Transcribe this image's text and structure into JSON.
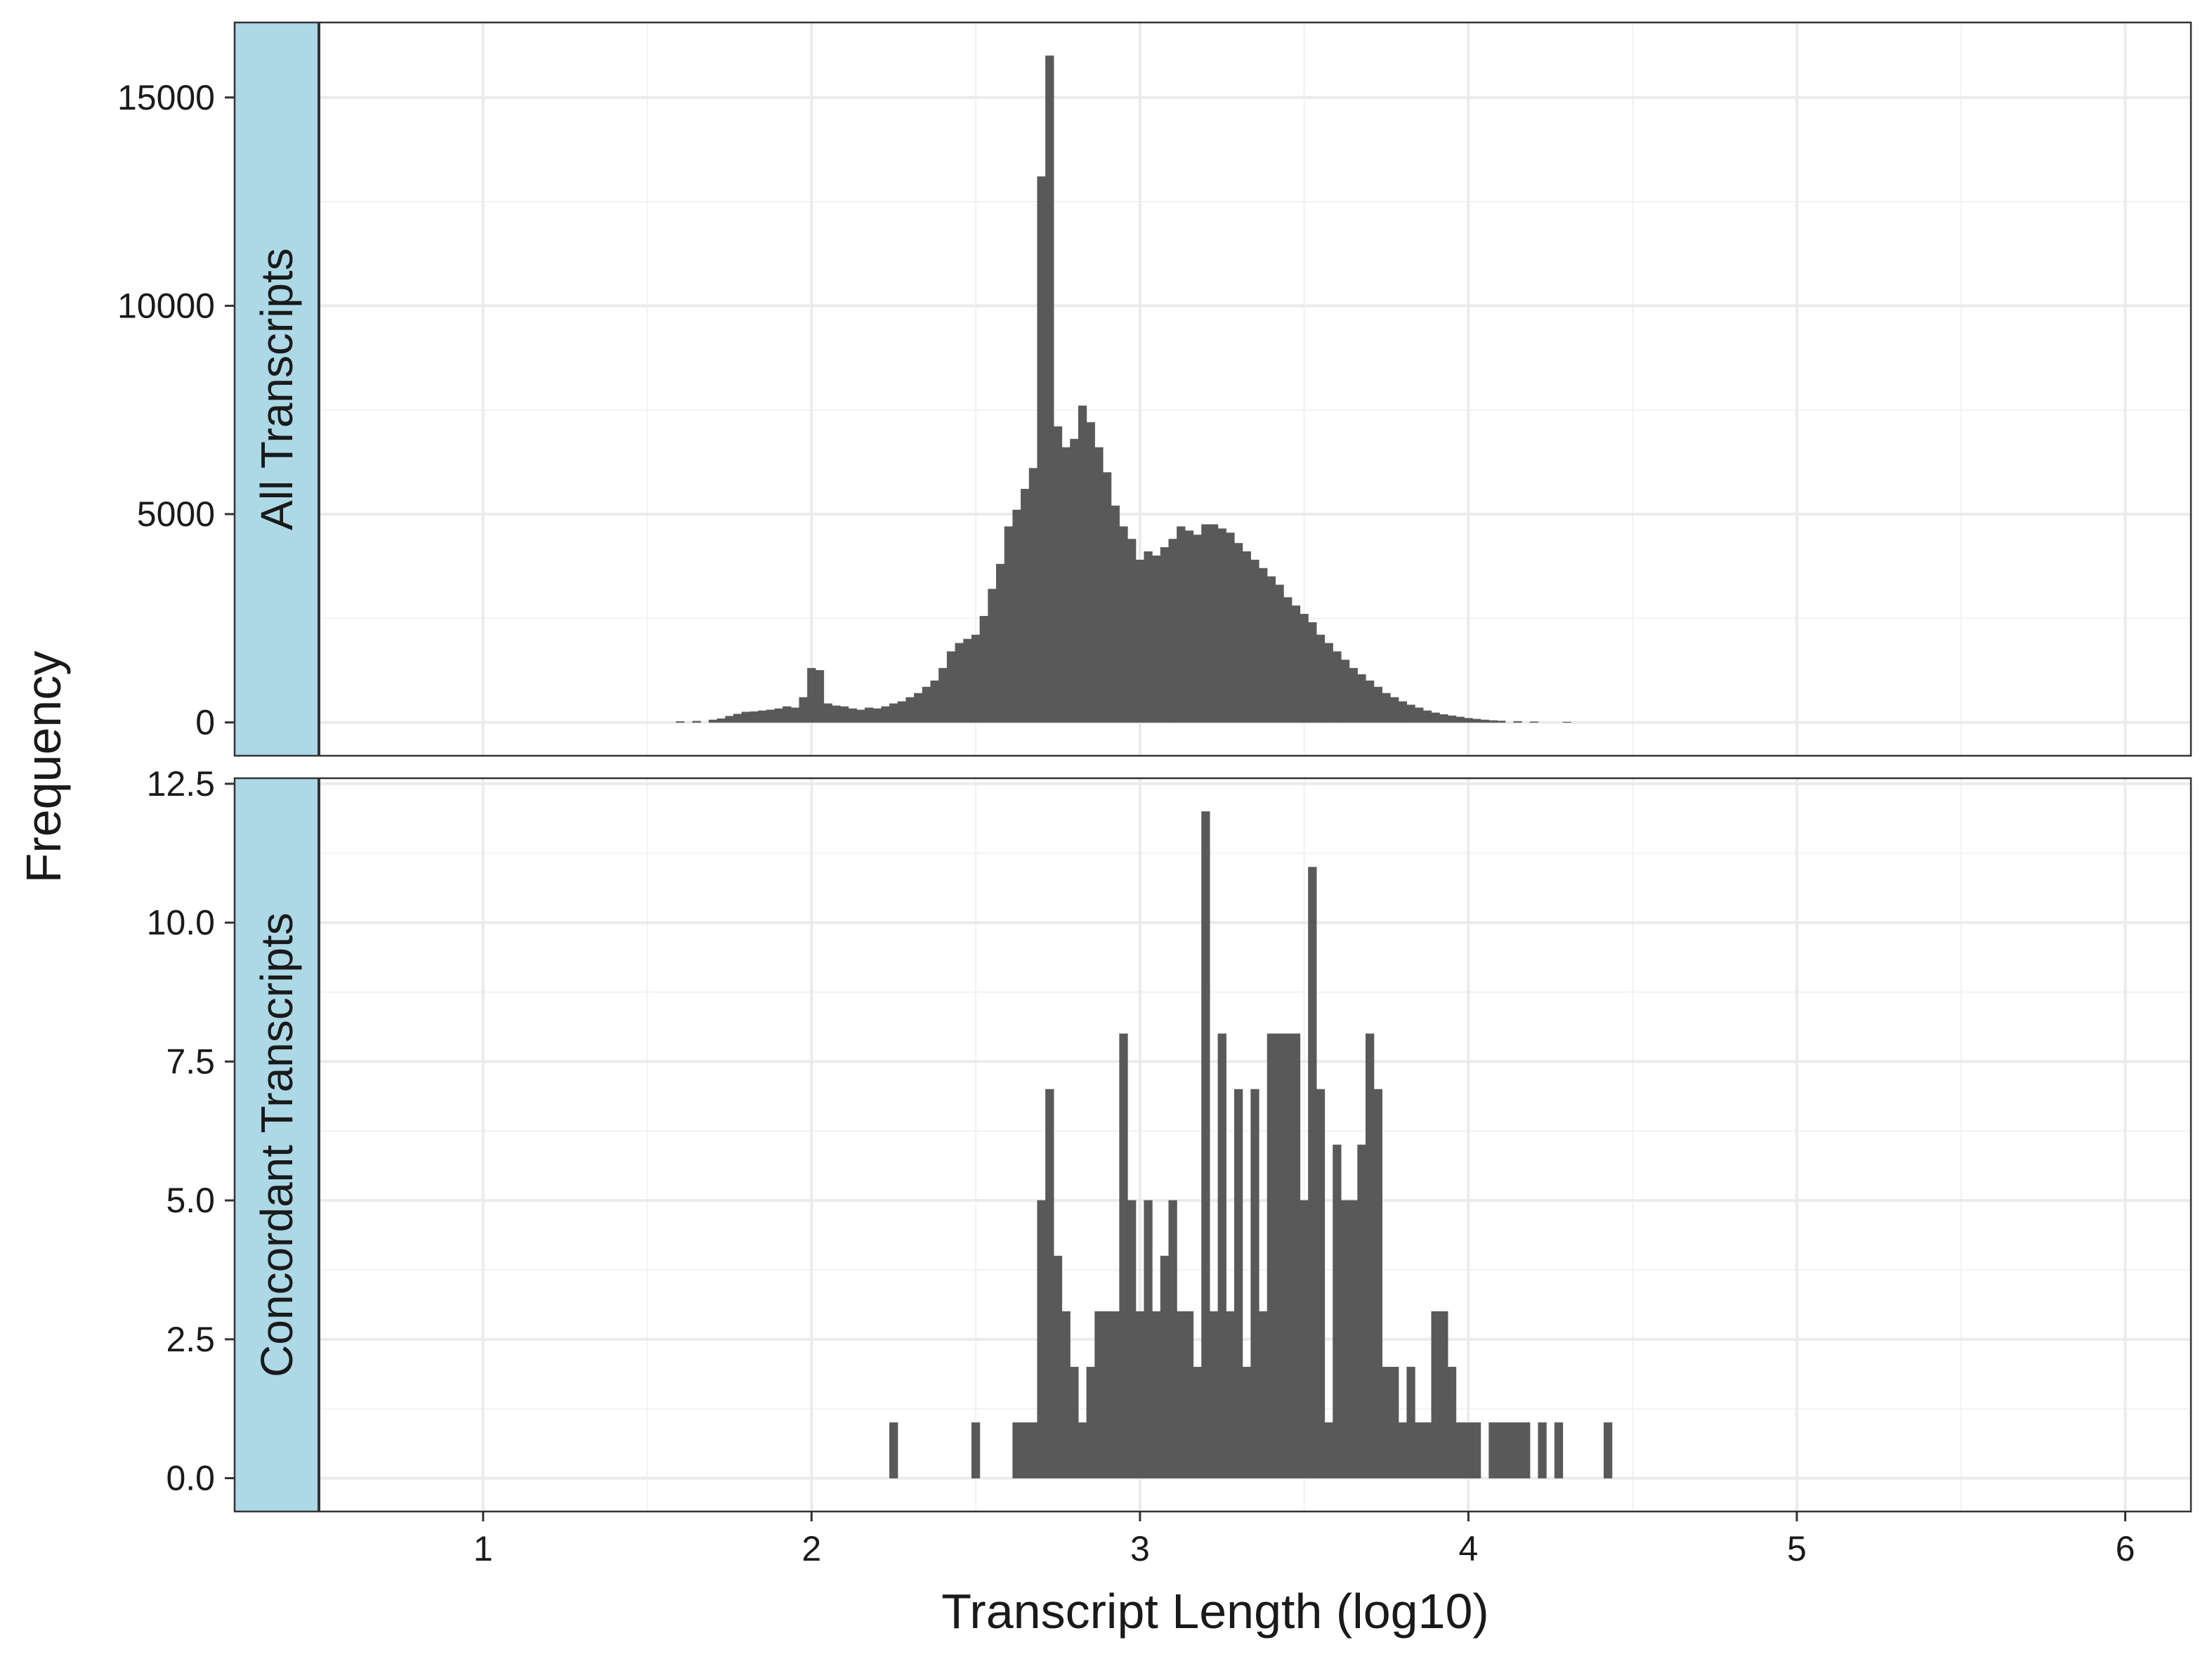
{
  "chart_data": {
    "type": "bar",
    "xlabel": "Transcript Length (log10)",
    "ylabel": "Frequency",
    "x_ticks": [
      1,
      2,
      3,
      4,
      5,
      6
    ],
    "x_tick_labels": [
      "1",
      "2",
      "3",
      "4",
      "5",
      "6"
    ],
    "xlim": [
      0.5,
      6.2
    ],
    "bin_width": 0.025,
    "grid": true,
    "strip_color": "#add8e6",
    "bar_color": "#595959",
    "panels": [
      {
        "label": "All Transcripts",
        "ylim": [
          -800,
          16800
        ],
        "y_ticks": [
          0,
          5000,
          10000,
          15000
        ],
        "y_tick_labels": [
          "0",
          "5000",
          "10000",
          "15000"
        ],
        "bars": [
          {
            "x": 1.6,
            "y": 20
          },
          {
            "x": 1.65,
            "y": 30
          },
          {
            "x": 1.7,
            "y": 60
          },
          {
            "x": 1.725,
            "y": 90
          },
          {
            "x": 1.75,
            "y": 150
          },
          {
            "x": 1.775,
            "y": 200
          },
          {
            "x": 1.8,
            "y": 250
          },
          {
            "x": 1.825,
            "y": 260
          },
          {
            "x": 1.85,
            "y": 280
          },
          {
            "x": 1.875,
            "y": 300
          },
          {
            "x": 1.9,
            "y": 330
          },
          {
            "x": 1.925,
            "y": 380
          },
          {
            "x": 1.95,
            "y": 350
          },
          {
            "x": 1.975,
            "y": 600
          },
          {
            "x": 2.0,
            "y": 1300
          },
          {
            "x": 2.025,
            "y": 1250
          },
          {
            "x": 2.05,
            "y": 450
          },
          {
            "x": 2.075,
            "y": 400
          },
          {
            "x": 2.1,
            "y": 380
          },
          {
            "x": 2.125,
            "y": 330
          },
          {
            "x": 2.15,
            "y": 300
          },
          {
            "x": 2.175,
            "y": 350
          },
          {
            "x": 2.2,
            "y": 330
          },
          {
            "x": 2.225,
            "y": 380
          },
          {
            "x": 2.25,
            "y": 450
          },
          {
            "x": 2.275,
            "y": 500
          },
          {
            "x": 2.3,
            "y": 600
          },
          {
            "x": 2.325,
            "y": 700
          },
          {
            "x": 2.35,
            "y": 850
          },
          {
            "x": 2.375,
            "y": 1000
          },
          {
            "x": 2.4,
            "y": 1300
          },
          {
            "x": 2.425,
            "y": 1700
          },
          {
            "x": 2.45,
            "y": 1900
          },
          {
            "x": 2.475,
            "y": 2000
          },
          {
            "x": 2.5,
            "y": 2100
          },
          {
            "x": 2.525,
            "y": 2550
          },
          {
            "x": 2.55,
            "y": 3200
          },
          {
            "x": 2.575,
            "y": 3800
          },
          {
            "x": 2.6,
            "y": 4700
          },
          {
            "x": 2.625,
            "y": 5100
          },
          {
            "x": 2.65,
            "y": 5600
          },
          {
            "x": 2.675,
            "y": 6100
          },
          {
            "x": 2.7,
            "y": 13100
          },
          {
            "x": 2.725,
            "y": 16000
          },
          {
            "x": 2.75,
            "y": 7100
          },
          {
            "x": 2.775,
            "y": 6600
          },
          {
            "x": 2.8,
            "y": 6800
          },
          {
            "x": 2.825,
            "y": 7600
          },
          {
            "x": 2.85,
            "y": 7200
          },
          {
            "x": 2.875,
            "y": 6600
          },
          {
            "x": 2.9,
            "y": 6000
          },
          {
            "x": 2.925,
            "y": 5200
          },
          {
            "x": 2.95,
            "y": 4700
          },
          {
            "x": 2.975,
            "y": 4400
          },
          {
            "x": 3.0,
            "y": 3900
          },
          {
            "x": 3.025,
            "y": 4100
          },
          {
            "x": 3.05,
            "y": 4000
          },
          {
            "x": 3.075,
            "y": 4200
          },
          {
            "x": 3.1,
            "y": 4400
          },
          {
            "x": 3.125,
            "y": 4700
          },
          {
            "x": 3.15,
            "y": 4600
          },
          {
            "x": 3.175,
            "y": 4500
          },
          {
            "x": 3.2,
            "y": 4750
          },
          {
            "x": 3.225,
            "y": 4750
          },
          {
            "x": 3.25,
            "y": 4650
          },
          {
            "x": 3.275,
            "y": 4550
          },
          {
            "x": 3.3,
            "y": 4300
          },
          {
            "x": 3.325,
            "y": 4100
          },
          {
            "x": 3.35,
            "y": 3900
          },
          {
            "x": 3.375,
            "y": 3700
          },
          {
            "x": 3.4,
            "y": 3500
          },
          {
            "x": 3.425,
            "y": 3300
          },
          {
            "x": 3.45,
            "y": 3000
          },
          {
            "x": 3.475,
            "y": 2800
          },
          {
            "x": 3.5,
            "y": 2600
          },
          {
            "x": 3.525,
            "y": 2400
          },
          {
            "x": 3.55,
            "y": 2100
          },
          {
            "x": 3.575,
            "y": 1900
          },
          {
            "x": 3.6,
            "y": 1700
          },
          {
            "x": 3.625,
            "y": 1500
          },
          {
            "x": 3.65,
            "y": 1300
          },
          {
            "x": 3.675,
            "y": 1150
          },
          {
            "x": 3.7,
            "y": 1000
          },
          {
            "x": 3.725,
            "y": 850
          },
          {
            "x": 3.75,
            "y": 700
          },
          {
            "x": 3.775,
            "y": 600
          },
          {
            "x": 3.8,
            "y": 500
          },
          {
            "x": 3.825,
            "y": 420
          },
          {
            "x": 3.85,
            "y": 350
          },
          {
            "x": 3.875,
            "y": 280
          },
          {
            "x": 3.9,
            "y": 230
          },
          {
            "x": 3.925,
            "y": 190
          },
          {
            "x": 3.95,
            "y": 160
          },
          {
            "x": 3.975,
            "y": 130
          },
          {
            "x": 4.0,
            "y": 100
          },
          {
            "x": 4.025,
            "y": 80
          },
          {
            "x": 4.05,
            "y": 60
          },
          {
            "x": 4.075,
            "y": 45
          },
          {
            "x": 4.1,
            "y": 35
          },
          {
            "x": 4.15,
            "y": 25
          },
          {
            "x": 4.2,
            "y": 15
          },
          {
            "x": 4.3,
            "y": 8
          }
        ]
      },
      {
        "label": "Concordant Transcripts",
        "ylim": [
          -0.6,
          12.6
        ],
        "y_ticks": [
          0,
          2.5,
          5,
          7.5,
          10,
          12.5
        ],
        "y_tick_labels": [
          "0.0",
          "2.5",
          "5.0",
          "7.5",
          "10.0",
          "12.5"
        ],
        "bars": [
          {
            "x": 2.25,
            "y": 1
          },
          {
            "x": 2.5,
            "y": 1
          },
          {
            "x": 2.625,
            "y": 1
          },
          {
            "x": 2.65,
            "y": 1
          },
          {
            "x": 2.675,
            "y": 1
          },
          {
            "x": 2.7,
            "y": 5
          },
          {
            "x": 2.725,
            "y": 7
          },
          {
            "x": 2.75,
            "y": 4
          },
          {
            "x": 2.775,
            "y": 3
          },
          {
            "x": 2.8,
            "y": 2
          },
          {
            "x": 2.825,
            "y": 1
          },
          {
            "x": 2.85,
            "y": 2
          },
          {
            "x": 2.875,
            "y": 3
          },
          {
            "x": 2.9,
            "y": 3
          },
          {
            "x": 2.925,
            "y": 3
          },
          {
            "x": 2.95,
            "y": 8
          },
          {
            "x": 2.975,
            "y": 5
          },
          {
            "x": 3.0,
            "y": 3
          },
          {
            "x": 3.025,
            "y": 5
          },
          {
            "x": 3.05,
            "y": 3
          },
          {
            "x": 3.075,
            "y": 4
          },
          {
            "x": 3.1,
            "y": 5
          },
          {
            "x": 3.125,
            "y": 3
          },
          {
            "x": 3.15,
            "y": 3
          },
          {
            "x": 3.175,
            "y": 2
          },
          {
            "x": 3.2,
            "y": 12
          },
          {
            "x": 3.225,
            "y": 3
          },
          {
            "x": 3.25,
            "y": 8
          },
          {
            "x": 3.275,
            "y": 3
          },
          {
            "x": 3.3,
            "y": 7
          },
          {
            "x": 3.325,
            "y": 2
          },
          {
            "x": 3.35,
            "y": 7
          },
          {
            "x": 3.375,
            "y": 3
          },
          {
            "x": 3.4,
            "y": 8
          },
          {
            "x": 3.425,
            "y": 8
          },
          {
            "x": 3.45,
            "y": 8
          },
          {
            "x": 3.475,
            "y": 8
          },
          {
            "x": 3.5,
            "y": 5
          },
          {
            "x": 3.525,
            "y": 11
          },
          {
            "x": 3.55,
            "y": 7
          },
          {
            "x": 3.575,
            "y": 1
          },
          {
            "x": 3.6,
            "y": 6
          },
          {
            "x": 3.625,
            "y": 5
          },
          {
            "x": 3.65,
            "y": 5
          },
          {
            "x": 3.675,
            "y": 6
          },
          {
            "x": 3.7,
            "y": 8
          },
          {
            "x": 3.725,
            "y": 7
          },
          {
            "x": 3.75,
            "y": 2
          },
          {
            "x": 3.775,
            "y": 2
          },
          {
            "x": 3.8,
            "y": 1
          },
          {
            "x": 3.825,
            "y": 2
          },
          {
            "x": 3.85,
            "y": 1
          },
          {
            "x": 3.875,
            "y": 1
          },
          {
            "x": 3.9,
            "y": 3
          },
          {
            "x": 3.925,
            "y": 3
          },
          {
            "x": 3.95,
            "y": 2
          },
          {
            "x": 3.975,
            "y": 1
          },
          {
            "x": 4.0,
            "y": 1
          },
          {
            "x": 4.025,
            "y": 1
          },
          {
            "x": 4.075,
            "y": 1
          },
          {
            "x": 4.1,
            "y": 1
          },
          {
            "x": 4.125,
            "y": 1
          },
          {
            "x": 4.15,
            "y": 1
          },
          {
            "x": 4.175,
            "y": 1
          },
          {
            "x": 4.225,
            "y": 1
          },
          {
            "x": 4.275,
            "y": 1
          },
          {
            "x": 4.425,
            "y": 1
          }
        ]
      }
    ]
  }
}
